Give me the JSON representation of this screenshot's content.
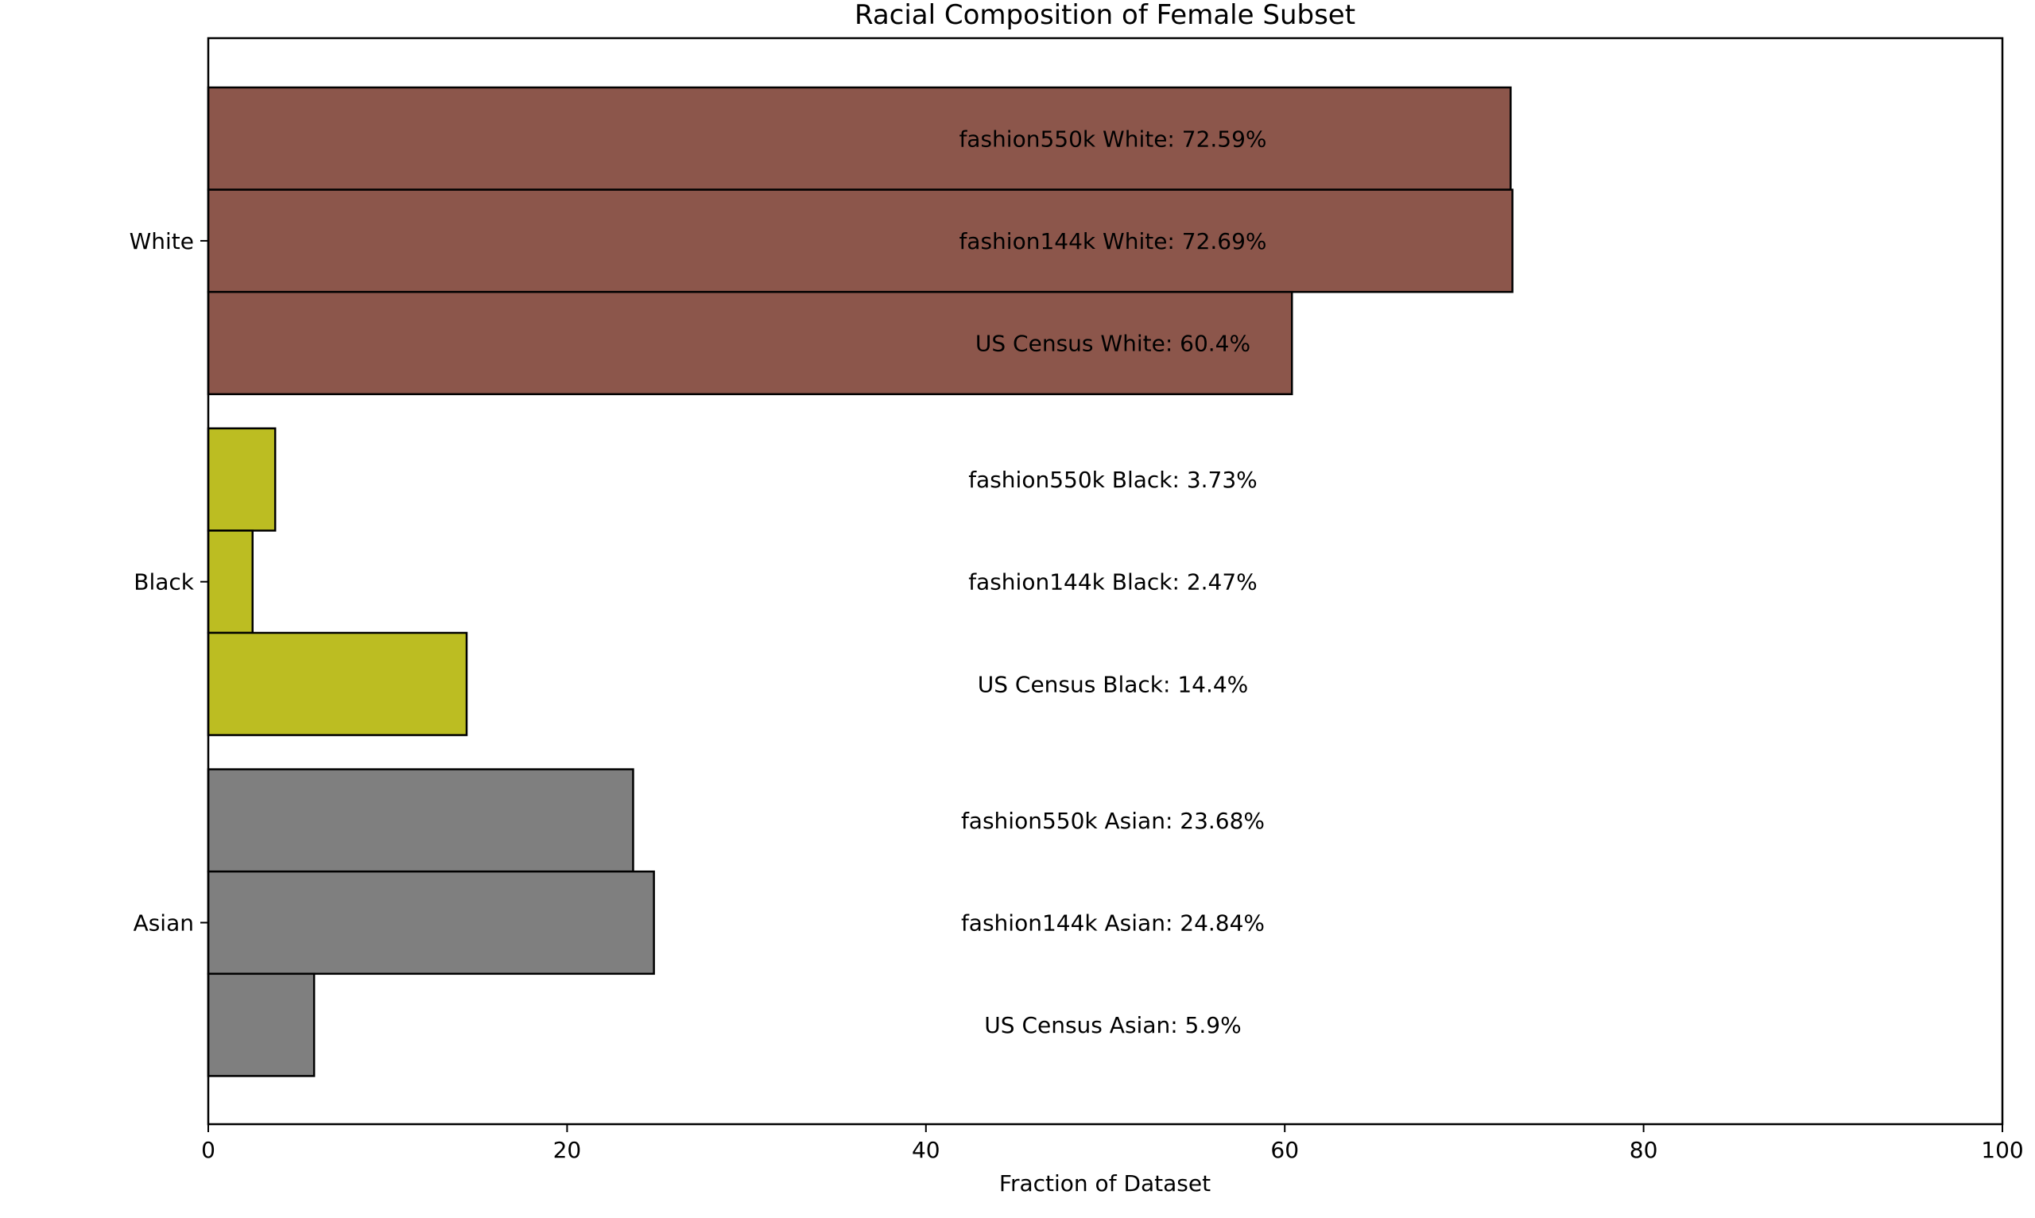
{
  "chart_data": {
    "type": "bar",
    "orientation": "horizontal",
    "title": "Racial Composition of Female Subset",
    "xlabel": "Fraction of Dataset",
    "ylabel": "",
    "xlim": [
      0,
      100
    ],
    "xticks": [
      "0",
      "20",
      "40",
      "60",
      "80",
      "100"
    ],
    "grid": false,
    "categories": [
      "White",
      "Black",
      "Asian"
    ],
    "bars": [
      {
        "category": "White",
        "value": 72.59,
        "label": "fashion550k White: 72.59%",
        "color": "#8c564b"
      },
      {
        "category": "White",
        "value": 72.69,
        "label": "fashion144k White: 72.69%",
        "color": "#8c564b"
      },
      {
        "category": "White",
        "value": 60.4,
        "label": "US Census White: 60.4%",
        "color": "#8c564b"
      },
      {
        "category": "Black",
        "value": 3.73,
        "label": "fashion550k Black: 3.73%",
        "color": "#bcbd22"
      },
      {
        "category": "Black",
        "value": 2.47,
        "label": "fashion144k Black: 2.47%",
        "color": "#bcbd22"
      },
      {
        "category": "Black",
        "value": 14.4,
        "label": "US Census Black: 14.4%",
        "color": "#bcbd22"
      },
      {
        "category": "Asian",
        "value": 23.68,
        "label": "fashion550k Asian: 23.68%",
        "color": "#7f7f7f"
      },
      {
        "category": "Asian",
        "value": 24.84,
        "label": "fashion144k Asian: 24.84%",
        "color": "#7f7f7f"
      },
      {
        "category": "Asian",
        "value": 5.9,
        "label": "US Census Asian: 5.9%",
        "color": "#7f7f7f"
      }
    ]
  }
}
